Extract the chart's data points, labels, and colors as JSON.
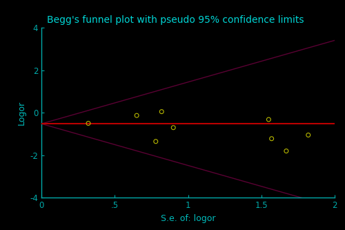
{
  "title": "Begg's funnel plot with pseudo 95% confidence limits",
  "xlabel": "S.e. of: logor",
  "ylabel": "Logor",
  "background_color": "#000000",
  "plot_bg_color": "#000000",
  "title_color": "#00d5d5",
  "axis_color": "#00aaaa",
  "tick_color": "#00bbbb",
  "label_color": "#00bbbb",
  "points_x": [
    0.32,
    0.65,
    0.78,
    0.82,
    0.9,
    1.55,
    1.57,
    1.67,
    1.82
  ],
  "points_y": [
    -0.5,
    -0.13,
    -1.35,
    0.05,
    -0.7,
    -0.32,
    -1.22,
    -1.8,
    -1.05
  ],
  "point_color": "#b8b800",
  "xlim": [
    0,
    2
  ],
  "ylim": [
    -4,
    4
  ],
  "xticks": [
    0.0,
    0.5,
    1.0,
    1.5,
    2.0
  ],
  "xtick_labels": [
    "0",
    ".5",
    "1",
    "1.5",
    "2"
  ],
  "yticks": [
    -4,
    -2,
    0,
    2,
    4
  ],
  "red_line_y": -0.52,
  "funnel_apex_y": -0.52,
  "funnel_upper_slope": 1.96,
  "funnel_lower_slope": -1.96,
  "funnel_color": "#5a0033",
  "red_line_color": "#bb0000",
  "title_fontsize": 10,
  "axis_label_fontsize": 9,
  "tick_fontsize": 8.5,
  "fig_width": 5.0,
  "fig_height": 3.33,
  "dpi": 100
}
